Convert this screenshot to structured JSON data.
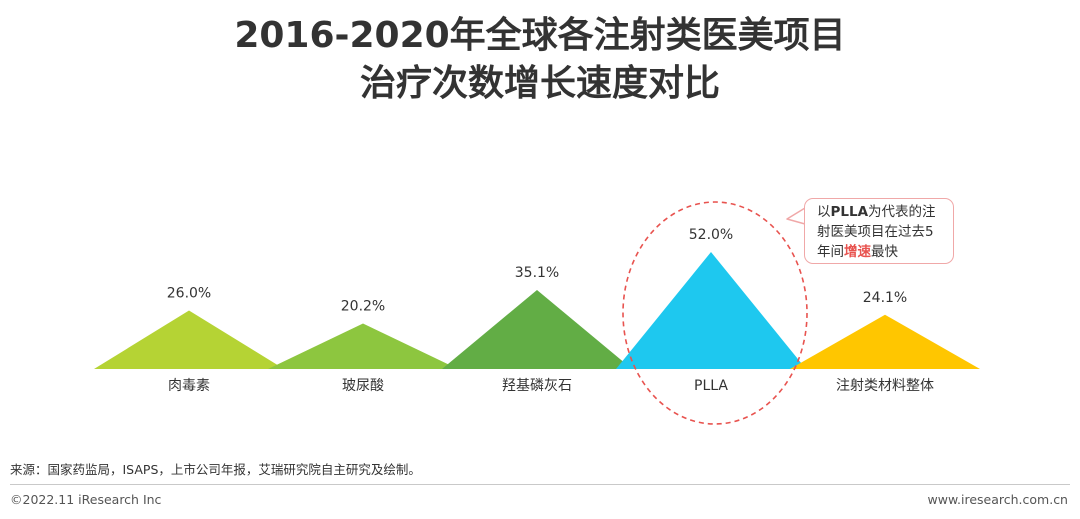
{
  "title": {
    "line1": "2016-2020年全球各注射类医美项目",
    "line2": "治疗次数增长速度对比"
  },
  "chart_data": {
    "type": "area",
    "categories": [
      "肉毒素",
      "玻尿酸",
      "羟基磷灰石",
      "PLLA",
      "注射类材料整体"
    ],
    "values": [
      26.0,
      20.2,
      35.1,
      52.0,
      24.1
    ],
    "data_labels": [
      "26.0%",
      "20.2%",
      "35.1%",
      "52.0%",
      "24.1%"
    ],
    "colors": [
      "#b5d334",
      "#8dc63f",
      "#62ad45",
      "#1ec8ef",
      "#ffc600"
    ],
    "highlight_index": 3,
    "highlight_color": "#e8534f",
    "grid": false,
    "legend": "none"
  },
  "callout": {
    "part1": "以",
    "emphasis": "PLLA",
    "part2": "为代表的注射医美项目在过去5年间",
    "highlight": "增速",
    "part3": "最快"
  },
  "footer": {
    "source": "来源：国家药监局，ISAPS，上市公司年报，艾瑞研究院自主研究及绘制。",
    "copyright": "©2022.11 iResearch Inc",
    "website": "www.iresearch.com.cn"
  }
}
